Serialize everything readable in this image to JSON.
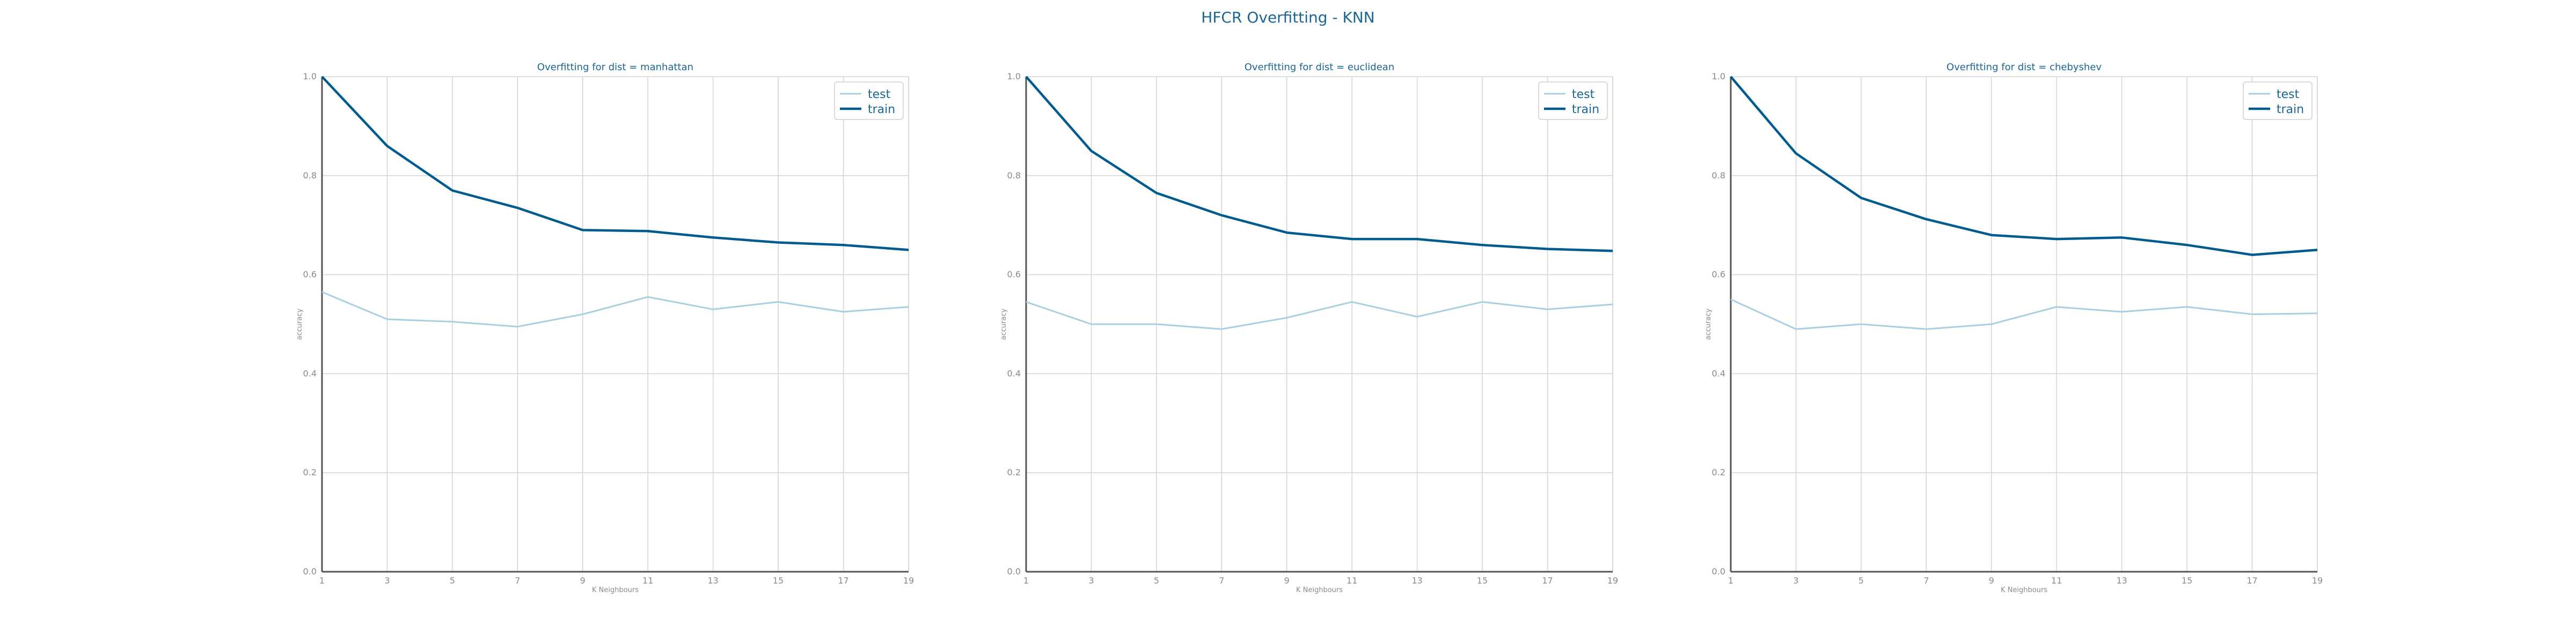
{
  "figure": {
    "title": "HFCR Overfitting - KNN",
    "colors": {
      "text": "#1a6796",
      "test": "#a9cfe0",
      "train": "#005b8f",
      "grid": "#d4d4d4",
      "axis": "#555555",
      "ticklabel": "#8a8a8a"
    }
  },
  "chart_data": [
    {
      "type": "line",
      "title": "Overfitting for dist = manhattan",
      "xlabel": "K Neighbours",
      "ylabel": "accuracy",
      "x": [
        1,
        3,
        5,
        7,
        9,
        11,
        13,
        15,
        17,
        19
      ],
      "xlim": [
        1,
        19
      ],
      "ylim": [
        0.0,
        1.0
      ],
      "yticks": [
        "0.0",
        "0.2",
        "0.4",
        "0.6",
        "0.8",
        "1.0"
      ],
      "grid": true,
      "legend": "top-right",
      "series": [
        {
          "name": "test",
          "values": [
            0.565,
            0.51,
            0.505,
            0.495,
            0.52,
            0.555,
            0.53,
            0.545,
            0.525,
            0.535
          ]
        },
        {
          "name": "train",
          "values": [
            1.0,
            0.86,
            0.77,
            0.735,
            0.69,
            0.688,
            0.675,
            0.665,
            0.66,
            0.65
          ]
        }
      ]
    },
    {
      "type": "line",
      "title": "Overfitting for dist = euclidean",
      "xlabel": "K Neighbours",
      "ylabel": "accuracy",
      "x": [
        1,
        3,
        5,
        7,
        9,
        11,
        13,
        15,
        17,
        19
      ],
      "xlim": [
        1,
        19
      ],
      "ylim": [
        0.0,
        1.0
      ],
      "yticks": [
        "0.0",
        "0.2",
        "0.4",
        "0.6",
        "0.8",
        "1.0"
      ],
      "grid": true,
      "legend": "top-right",
      "series": [
        {
          "name": "test",
          "values": [
            0.545,
            0.5,
            0.5,
            0.49,
            0.513,
            0.545,
            0.515,
            0.545,
            0.53,
            0.54
          ]
        },
        {
          "name": "train",
          "values": [
            1.0,
            0.85,
            0.765,
            0.72,
            0.685,
            0.672,
            0.672,
            0.66,
            0.652,
            0.648
          ]
        }
      ]
    },
    {
      "type": "line",
      "title": "Overfitting for dist = chebyshev",
      "xlabel": "K Neighbours",
      "ylabel": "accuracy",
      "x": [
        1,
        3,
        5,
        7,
        9,
        11,
        13,
        15,
        17,
        19
      ],
      "xlim": [
        1,
        19
      ],
      "ylim": [
        0.0,
        1.0
      ],
      "yticks": [
        "0.0",
        "0.2",
        "0.4",
        "0.6",
        "0.8",
        "1.0"
      ],
      "grid": true,
      "legend": "top-right",
      "series": [
        {
          "name": "test",
          "values": [
            0.55,
            0.49,
            0.5,
            0.49,
            0.5,
            0.535,
            0.525,
            0.535,
            0.52,
            0.522
          ]
        },
        {
          "name": "train",
          "values": [
            1.0,
            0.845,
            0.755,
            0.712,
            0.68,
            0.672,
            0.675,
            0.66,
            0.64,
            0.65
          ]
        }
      ]
    }
  ]
}
